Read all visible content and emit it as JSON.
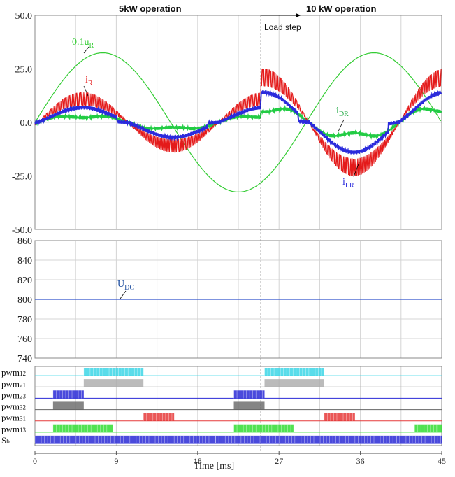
{
  "headers": {
    "left": "5kW operation",
    "right": "10 kW operation",
    "load_step": "Load step"
  },
  "x_axis": {
    "label": "Time [ms]",
    "range": [
      0,
      45
    ],
    "ticks": [
      "0",
      "9",
      "18",
      "27",
      "36",
      "45"
    ]
  },
  "colors": {
    "uR": "#33cc33",
    "iR": "#e41a1a",
    "iLR": "#2b2bdc",
    "iDR": "#22cc44",
    "UDC": "#3355cc",
    "grid": "#d4d4d4"
  },
  "chart_data": [
    {
      "type": "line",
      "panel": "currents",
      "ylim": [
        -50,
        50
      ],
      "yticks": [
        "50.0",
        "25.0",
        "0.0",
        "-25.0",
        "-50.0"
      ],
      "load_step_ms": 25,
      "annotations": {
        "uR": "0.1u",
        "uR_sub": "R",
        "iR": "i",
        "iR_sub": "R",
        "iDR": "i",
        "iDR_sub": "DR",
        "iLR": "i",
        "iLR_sub": "LR"
      },
      "series": [
        {
          "key": "uR",
          "x": [
            0,
            3.75,
            7.5,
            11.25,
            15,
            18.75,
            22.5,
            26.25,
            30,
            33.75,
            37.5,
            41.25,
            45
          ],
          "y": [
            0,
            16.3,
            28.2,
            32.5,
            28.2,
            16.3,
            0,
            -16.3,
            -28.2,
            -32.5,
            -28.2,
            -16.3,
            0
          ],
          "note": "sinusoid amplitude 32.5, period 30 ms"
        },
        {
          "key": "iR",
          "period_ms": 20,
          "amplitude_before": 11,
          "amplitude_after": 21,
          "ripple_before": 3,
          "ripple_after": 4
        },
        {
          "key": "iLR",
          "period_ms": 20,
          "amplitude_before": 7,
          "amplitude_after": 14
        },
        {
          "key": "iDR",
          "period_ms": 20,
          "amplitude_before": 5,
          "amplitude_after": 11
        }
      ]
    },
    {
      "type": "line",
      "panel": "dc_voltage",
      "ylim": [
        740,
        860
      ],
      "yticks": [
        "860",
        "840",
        "820",
        "800",
        "780",
        "760",
        "740"
      ],
      "annotation": "U",
      "annotation_sub": "DC",
      "series": [
        {
          "name": "",
          "x": [
            0,
            45
          ],
          "y": [
            800,
            800
          ]
        }
      ]
    },
    {
      "type": "line",
      "panel": "pwm_signals",
      "period_ms": 20,
      "signals": [
        {
          "label": "pwm",
          "label_sub": "12",
          "color": "#3dd6e6",
          "on_fraction_before": [
            [
              0.17,
              0.5
            ]
          ],
          "on_fraction_after": [
            [
              0.67,
              0.83
            ]
          ],
          "hatched": true
        },
        {
          "label": "pwm",
          "label_sub": "21",
          "color": "#aaaaaa",
          "on_fraction_before": [
            [
              0.17,
              0.5
            ]
          ],
          "on_fraction_after": [
            [
              0.67,
              0.83
            ]
          ],
          "hatched": false
        },
        {
          "label": "pwm",
          "label_sub": "23",
          "color": "#2a2ad6",
          "on_fraction_before": [
            [
              0,
              0.17
            ]
          ],
          "on_fraction_after": [
            [
              0.83,
              1.0
            ]
          ],
          "hatched": true
        },
        {
          "label": "pwm",
          "label_sub": "32",
          "color": "#666666",
          "on_fraction_before": [
            [
              0,
              0.17
            ]
          ],
          "on_fraction_after": [
            [
              0.83,
              1.0
            ]
          ],
          "hatched": false
        },
        {
          "label": "pwm",
          "label_sub": "31",
          "color": "#e63a3a",
          "on_fraction_before": [
            [
              0.5,
              0.67
            ]
          ],
          "on_fraction_after": [
            [
              0.5,
              0.83
            ]
          ],
          "hatched": true
        },
        {
          "label": "pwm",
          "label_sub": "13",
          "color": "#33dd33",
          "on_fraction_before": [
            [
              0,
              0.33
            ]
          ],
          "on_fraction_after": [
            [
              0,
              0.33
            ]
          ],
          "hatched": true
        },
        {
          "label": "S",
          "label_sub": "b",
          "color": "#2a2ad6",
          "on_fraction_before": [
            [
              0,
              1
            ]
          ],
          "on_fraction_after": [
            [
              0,
              1
            ]
          ],
          "hatched": true
        }
      ]
    }
  ]
}
